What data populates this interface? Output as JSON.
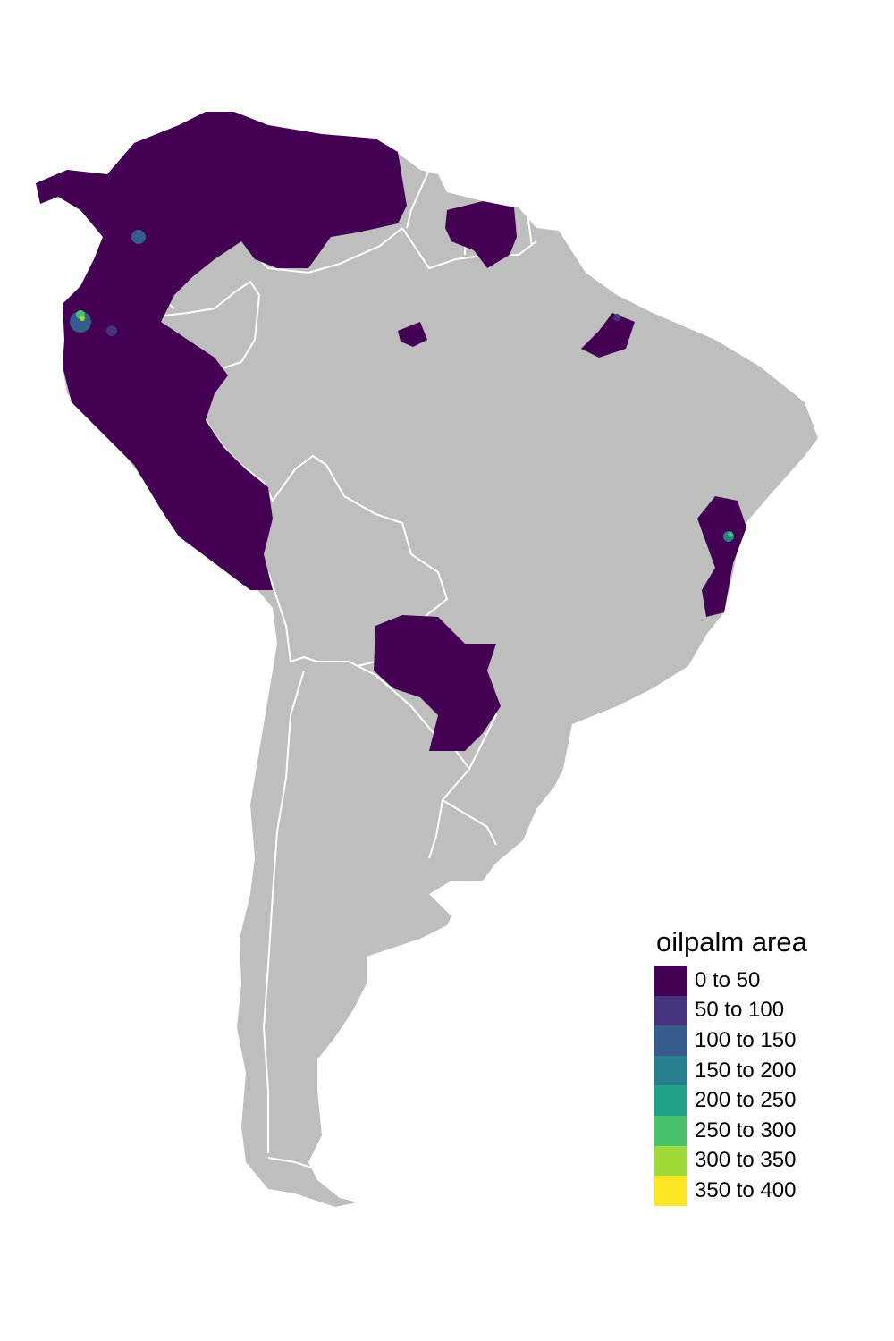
{
  "map": {
    "region": "South America",
    "land_color": "#bebebe",
    "border_color": "#ffffff",
    "background": "#ffffff"
  },
  "legend": {
    "title": "oilpalm area",
    "items": [
      {
        "label": "0 to 50",
        "color": "#440154"
      },
      {
        "label": "50 to 100",
        "color": "#46337e"
      },
      {
        "label": "100 to 150",
        "color": "#365c8d"
      },
      {
        "label": "150 to 200",
        "color": "#277f8e"
      },
      {
        "label": "200 to 250",
        "color": "#1fa187"
      },
      {
        "label": "250 to 300",
        "color": "#4ac16d"
      },
      {
        "label": "300 to 350",
        "color": "#a0da39"
      },
      {
        "label": "350 to 400",
        "color": "#fde725"
      }
    ]
  }
}
